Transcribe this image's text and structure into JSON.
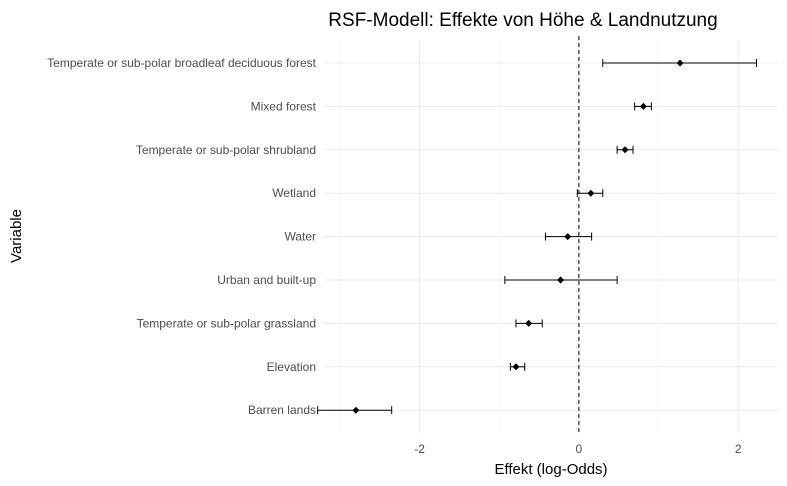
{
  "chart_data": {
    "type": "scatter",
    "subtype": "dot-and-whisker",
    "title": "RSF-Modell: Effekte von Höhe & Landnutzung",
    "xlabel": "Effekt (log-Odds)",
    "ylabel": "Variable",
    "xlim": [
      -3.2,
      2.5
    ],
    "xticks": [
      -2,
      0,
      2
    ],
    "xtick_labels": [
      "-2",
      "0",
      "2"
    ],
    "reference_line": {
      "x": 0,
      "style": "dashed"
    },
    "grid": true,
    "legend": "none",
    "categories": [
      "Temperate or sub-polar broadleaf deciduous forest",
      "Mixed forest",
      "Temperate or sub-polar shrubland",
      "Wetland",
      "Water",
      "Urban and built-up",
      "Temperate or sub-polar grassland",
      "Elevation",
      "Barren lands"
    ],
    "estimates": [
      1.27,
      0.81,
      0.58,
      0.15,
      -0.14,
      -0.23,
      -0.63,
      -0.79,
      -2.8
    ],
    "lower": [
      0.3,
      0.7,
      0.48,
      -0.02,
      -0.42,
      -0.93,
      -0.79,
      -0.86,
      -3.28
    ],
    "upper": [
      2.23,
      0.91,
      0.68,
      0.3,
      0.16,
      0.48,
      -0.46,
      -0.68,
      -2.35
    ],
    "colors": {
      "point": "#000000",
      "grid": "#ebebeb",
      "tick_text": "#4d4d4d"
    }
  }
}
